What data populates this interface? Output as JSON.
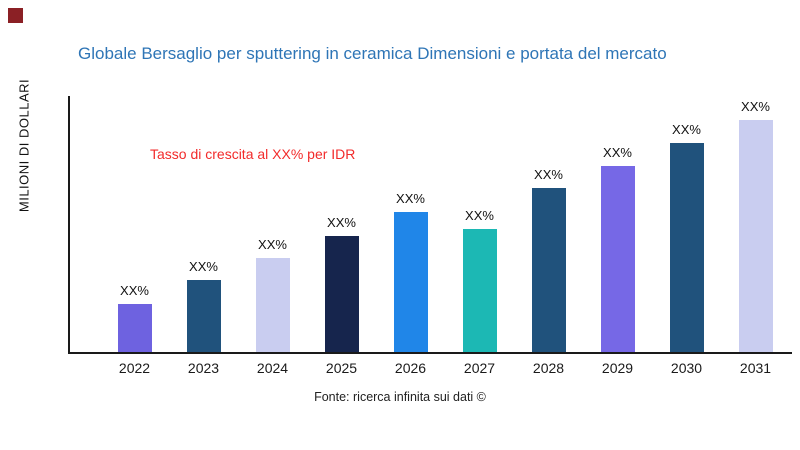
{
  "decor": {
    "corner_mark_color": "#8b2025"
  },
  "chart_data": {
    "type": "bar",
    "title": "Globale Bersaglio per sputtering in ceramica Dimensioni e portata del mercato",
    "title_color": "#2e75b6",
    "ylabel": "MILIONI DI DOLLARI",
    "xlabel": "",
    "annotation": {
      "text": "Tasso di crescita al XX% per IDR",
      "color": "#f22b2b"
    },
    "source": "Fonte: ricerca infinita sui dati ©",
    "categories": [
      "2022",
      "2023",
      "2024",
      "2025",
      "2026",
      "2027",
      "2028",
      "2029",
      "2030",
      "2031"
    ],
    "bar_labels": [
      "XX%",
      "XX%",
      "XX%",
      "XX%",
      "XX%",
      "XX%",
      "XX%",
      "XX%",
      "XX%",
      "XX%"
    ],
    "series": [
      {
        "values": [
          48,
          72,
          94,
          116,
          140,
          123,
          164,
          186,
          209,
          232
        ]
      }
    ],
    "value_scale_max": 256,
    "bar_colors": [
      "#6e62e0",
      "#20527c",
      "#c9cdf0",
      "#16254d",
      "#2086e8",
      "#1cb8b4",
      "#20527c",
      "#7668e6",
      "#20527c",
      "#c9cdf0"
    ],
    "grid": false,
    "legend": false,
    "ylim_labeled": false
  }
}
